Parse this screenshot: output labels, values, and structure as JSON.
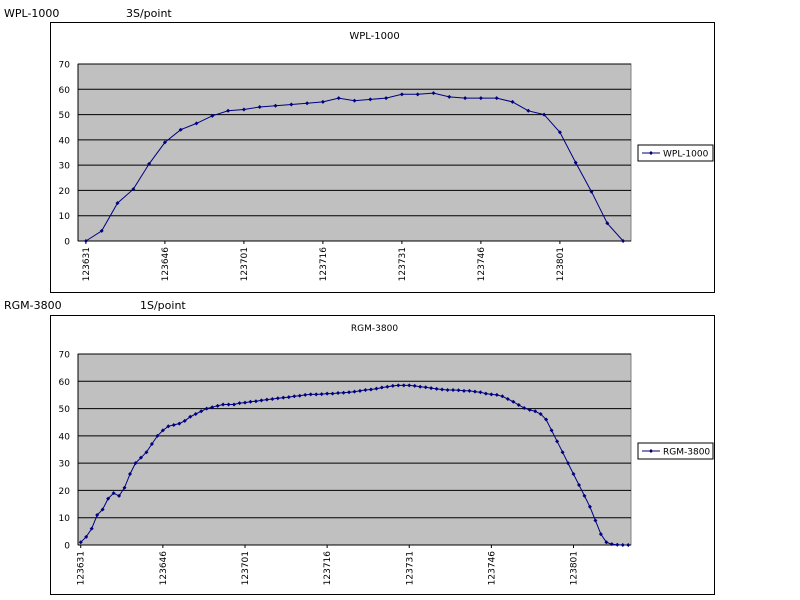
{
  "captions": [
    {
      "name": "WPL-1000",
      "rate": "3S/point"
    },
    {
      "name": "RGM-3800",
      "rate": "1S/point"
    }
  ],
  "colors": {
    "plot_bg": "#c0c0c0",
    "series": "#000080",
    "grid": "#000000"
  },
  "chart_data": [
    {
      "type": "line",
      "title": "WPL-1000",
      "xlabel": "",
      "ylabel": "",
      "ylim": [
        0,
        70
      ],
      "yticks": [
        0,
        10,
        20,
        30,
        40,
        50,
        60,
        70
      ],
      "grid": true,
      "legend": "right",
      "tick_labels": [
        "123631",
        "123646",
        "123701",
        "123716",
        "123731",
        "123746",
        "123801"
      ],
      "series": [
        {
          "name": "WPL-1000",
          "values": [
            0,
            4,
            15,
            20.5,
            30.5,
            39,
            44,
            46.5,
            49.5,
            51.5,
            52,
            53,
            53.5,
            54,
            54.5,
            55,
            56.5,
            55.5,
            56,
            56.5,
            58,
            58,
            58.5,
            57,
            56.5,
            56.5,
            56.5,
            55,
            51.5,
            50,
            43,
            31,
            19.5,
            7,
            0
          ]
        }
      ]
    },
    {
      "type": "line",
      "title": "RGM-3800",
      "xlabel": "",
      "ylabel": "",
      "ylim": [
        0,
        70
      ],
      "yticks": [
        0,
        10,
        20,
        30,
        40,
        50,
        60,
        70
      ],
      "grid": true,
      "legend": "right",
      "tick_labels": [
        "123631",
        "123646",
        "123701",
        "123716",
        "123731",
        "123746",
        "123801"
      ],
      "series": [
        {
          "name": "RGM-3800",
          "values": [
            1,
            3,
            6,
            11,
            13,
            17,
            19,
            18,
            21,
            26,
            30,
            32,
            34,
            37,
            40,
            42,
            43.5,
            44,
            44.5,
            45.5,
            47,
            48,
            49,
            50,
            50.5,
            51,
            51.5,
            51.5,
            51.5,
            52,
            52.2,
            52.5,
            52.7,
            53,
            53.3,
            53.5,
            53.8,
            54,
            54.2,
            54.5,
            54.7,
            55,
            55.2,
            55.2,
            55.3,
            55.5,
            55.5,
            55.7,
            55.8,
            56,
            56.2,
            56.5,
            56.8,
            57,
            57.3,
            57.7,
            58,
            58.3,
            58.5,
            58.5,
            58.5,
            58.3,
            58,
            57.8,
            57.5,
            57.2,
            57,
            56.8,
            56.8,
            56.7,
            56.5,
            56.5,
            56.2,
            56,
            55.5,
            55.2,
            55,
            54.5,
            53.5,
            52.5,
            51.3,
            50.2,
            49.5,
            49,
            48,
            46,
            42,
            38,
            34,
            30,
            26,
            22,
            18,
            14,
            9,
            4,
            1,
            0.3,
            0.1,
            0,
            0
          ]
        }
      ]
    }
  ]
}
